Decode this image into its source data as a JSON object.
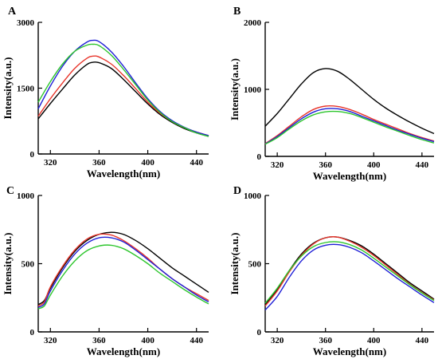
{
  "series_colors": [
    "#000000",
    "#e8352b",
    "#1f1fd6",
    "#2ec62e"
  ],
  "chart_data": [
    {
      "type": "line",
      "panel": "A",
      "xlabel": "Wavelength(nm)",
      "ylabel": "Intensity(a.u.)",
      "xlim": [
        310,
        450
      ],
      "ylim": [
        0,
        3000
      ],
      "xticks": [
        320,
        360,
        400,
        440
      ],
      "yticks": [
        0,
        1500,
        3000
      ],
      "series": [
        {
          "color": "#000000",
          "x": [
            310,
            320,
            330,
            340,
            350,
            355,
            360,
            370,
            380,
            390,
            400,
            410,
            420,
            430,
            440,
            450
          ],
          "y": [
            800,
            1150,
            1480,
            1800,
            2040,
            2090,
            2080,
            1950,
            1700,
            1420,
            1140,
            900,
            720,
            580,
            480,
            400
          ]
        },
        {
          "color": "#e8352b",
          "x": [
            310,
            320,
            330,
            340,
            350,
            355,
            360,
            370,
            380,
            390,
            400,
            410,
            420,
            430,
            440,
            450
          ],
          "y": [
            860,
            1260,
            1620,
            1950,
            2180,
            2230,
            2210,
            2050,
            1790,
            1490,
            1180,
            930,
            740,
            600,
            500,
            420
          ]
        },
        {
          "color": "#1f1fd6",
          "x": [
            310,
            320,
            330,
            340,
            350,
            355,
            360,
            370,
            380,
            390,
            400,
            410,
            420,
            430,
            440,
            450
          ],
          "y": [
            1030,
            1550,
            2000,
            2340,
            2550,
            2590,
            2560,
            2330,
            2000,
            1620,
            1260,
            970,
            760,
            610,
            500,
            420
          ]
        },
        {
          "color": "#2ec62e",
          "x": [
            310,
            320,
            330,
            340,
            350,
            355,
            360,
            370,
            380,
            390,
            400,
            410,
            420,
            430,
            440,
            450
          ],
          "y": [
            1180,
            1650,
            2050,
            2340,
            2480,
            2500,
            2470,
            2250,
            1930,
            1580,
            1230,
            950,
            740,
            600,
            480,
            400
          ]
        }
      ]
    },
    {
      "type": "line",
      "panel": "B",
      "xlabel": "Wavelength(nm)",
      "ylabel": "Intensity(a.u.)",
      "xlim": [
        310,
        450
      ],
      "ylim": [
        0,
        2000
      ],
      "xticks": [
        320,
        360,
        400,
        440
      ],
      "yticks": [
        0,
        1000,
        2000
      ],
      "series": [
        {
          "color": "#000000",
          "x": [
            310,
            320,
            330,
            340,
            350,
            360,
            370,
            380,
            390,
            400,
            410,
            420,
            430,
            440,
            450
          ],
          "y": [
            450,
            640,
            860,
            1080,
            1250,
            1310,
            1270,
            1150,
            1000,
            850,
            720,
            610,
            510,
            420,
            340
          ]
        },
        {
          "color": "#e8352b",
          "x": [
            310,
            320,
            330,
            340,
            350,
            360,
            370,
            380,
            390,
            400,
            410,
            420,
            430,
            440,
            450
          ],
          "y": [
            190,
            310,
            450,
            590,
            700,
            750,
            745,
            700,
            630,
            550,
            480,
            410,
            340,
            280,
            230
          ]
        },
        {
          "color": "#1f1fd6",
          "x": [
            310,
            320,
            330,
            340,
            350,
            360,
            370,
            380,
            390,
            400,
            410,
            420,
            430,
            440,
            450
          ],
          "y": [
            185,
            295,
            430,
            560,
            660,
            710,
            710,
            670,
            600,
            530,
            460,
            390,
            330,
            270,
            220
          ]
        },
        {
          "color": "#2ec62e",
          "x": [
            310,
            320,
            330,
            340,
            350,
            360,
            370,
            380,
            390,
            400,
            410,
            420,
            430,
            440,
            450
          ],
          "y": [
            180,
            280,
            410,
            530,
            620,
            665,
            670,
            640,
            580,
            510,
            440,
            375,
            310,
            250,
            200
          ]
        }
      ]
    },
    {
      "type": "line",
      "panel": "C",
      "xlabel": "Wavelength(nm)",
      "ylabel": "Intensity(a.u.)",
      "xlim": [
        310,
        450
      ],
      "ylim": [
        0,
        1000
      ],
      "xticks": [
        320,
        360,
        400,
        440
      ],
      "yticks": [
        0,
        500,
        1000
      ],
      "series": [
        {
          "color": "#000000",
          "x": [
            310,
            315,
            320,
            330,
            340,
            350,
            360,
            370,
            380,
            390,
            400,
            410,
            420,
            430,
            440,
            450
          ],
          "y": [
            200,
            230,
            320,
            470,
            590,
            670,
            715,
            730,
            715,
            670,
            610,
            540,
            470,
            410,
            350,
            290
          ]
        },
        {
          "color": "#e8352b",
          "x": [
            310,
            315,
            320,
            330,
            340,
            350,
            360,
            370,
            380,
            390,
            400,
            410,
            420,
            430,
            440,
            450
          ],
          "y": [
            190,
            220,
            330,
            480,
            600,
            680,
            715,
            710,
            670,
            610,
            540,
            460,
            390,
            330,
            280,
            230
          ]
        },
        {
          "color": "#1f1fd6",
          "x": [
            310,
            315,
            320,
            330,
            340,
            350,
            360,
            370,
            380,
            390,
            400,
            410,
            420,
            430,
            440,
            450
          ],
          "y": [
            180,
            205,
            300,
            450,
            570,
            650,
            690,
            690,
            660,
            600,
            530,
            460,
            390,
            330,
            270,
            220
          ]
        },
        {
          "color": "#2ec62e",
          "x": [
            310,
            315,
            320,
            330,
            340,
            350,
            360,
            370,
            380,
            390,
            400,
            410,
            420,
            430,
            440,
            450
          ],
          "y": [
            170,
            190,
            270,
            410,
            520,
            595,
            630,
            635,
            610,
            560,
            500,
            430,
            370,
            310,
            255,
            205
          ]
        }
      ]
    },
    {
      "type": "line",
      "panel": "D",
      "xlabel": "Wavelength(nm)",
      "ylabel": "Intensity(a.u.)",
      "xlim": [
        310,
        450
      ],
      "ylim": [
        0,
        1000
      ],
      "xticks": [
        320,
        360,
        400,
        440
      ],
      "yticks": [
        0,
        500,
        1000
      ],
      "series": [
        {
          "color": "#000000",
          "x": [
            310,
            320,
            330,
            340,
            350,
            360,
            370,
            380,
            390,
            400,
            410,
            420,
            430,
            440,
            450
          ],
          "y": [
            200,
            310,
            450,
            570,
            650,
            690,
            695,
            670,
            630,
            570,
            500,
            430,
            360,
            300,
            240
          ]
        },
        {
          "color": "#e8352b",
          "x": [
            310,
            320,
            330,
            340,
            350,
            360,
            370,
            380,
            390,
            400,
            410,
            420,
            430,
            440,
            450
          ],
          "y": [
            190,
            300,
            440,
            560,
            645,
            690,
            695,
            665,
            620,
            560,
            490,
            420,
            350,
            290,
            235
          ]
        },
        {
          "color": "#1f1fd6",
          "x": [
            310,
            320,
            330,
            340,
            350,
            360,
            370,
            380,
            390,
            400,
            410,
            420,
            430,
            440,
            450
          ],
          "y": [
            160,
            260,
            400,
            520,
            600,
            635,
            640,
            620,
            580,
            520,
            455,
            390,
            330,
            270,
            215
          ]
        },
        {
          "color": "#2ec62e",
          "x": [
            310,
            320,
            330,
            340,
            350,
            360,
            370,
            380,
            390,
            400,
            410,
            420,
            430,
            440,
            450
          ],
          "y": [
            210,
            320,
            450,
            555,
            625,
            655,
            660,
            640,
            600,
            540,
            475,
            410,
            345,
            285,
            230
          ]
        }
      ]
    }
  ]
}
